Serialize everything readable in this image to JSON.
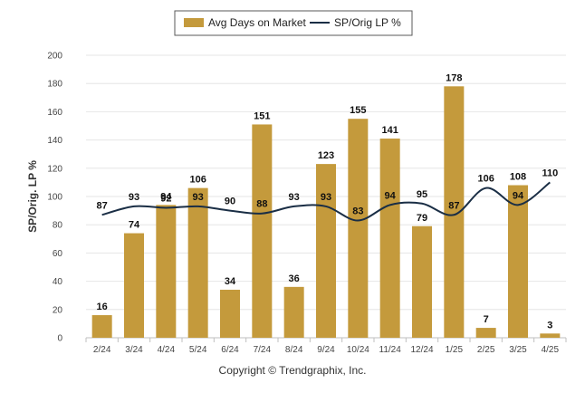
{
  "chart_data": {
    "type": "bar",
    "categories": [
      "2/24",
      "3/24",
      "4/24",
      "5/24",
      "6/24",
      "7/24",
      "8/24",
      "9/24",
      "10/24",
      "11/24",
      "12/24",
      "1/25",
      "2/25",
      "3/25",
      "4/25"
    ],
    "series": [
      {
        "name": "Avg Days on Market",
        "type": "bar",
        "color": "#c49a3c",
        "values": [
          16,
          74,
          94,
          106,
          34,
          151,
          36,
          123,
          155,
          141,
          79,
          178,
          7,
          108,
          3
        ]
      },
      {
        "name": "SP/Orig LP %",
        "type": "line",
        "color": "#1a2e45",
        "values": [
          87,
          93,
          92,
          93,
          90,
          88,
          93,
          93,
          83,
          94,
          95,
          87,
          106,
          94,
          110
        ]
      }
    ],
    "ylabel": "SP/Orig. LP %",
    "ylim": [
      0,
      200
    ],
    "yticks": [
      0,
      20,
      40,
      60,
      80,
      100,
      120,
      140,
      160,
      180,
      200
    ],
    "grid": true,
    "legend_position": "top-center"
  },
  "footer": {
    "copyright": "Copyright © Trendgraphix, Inc."
  }
}
